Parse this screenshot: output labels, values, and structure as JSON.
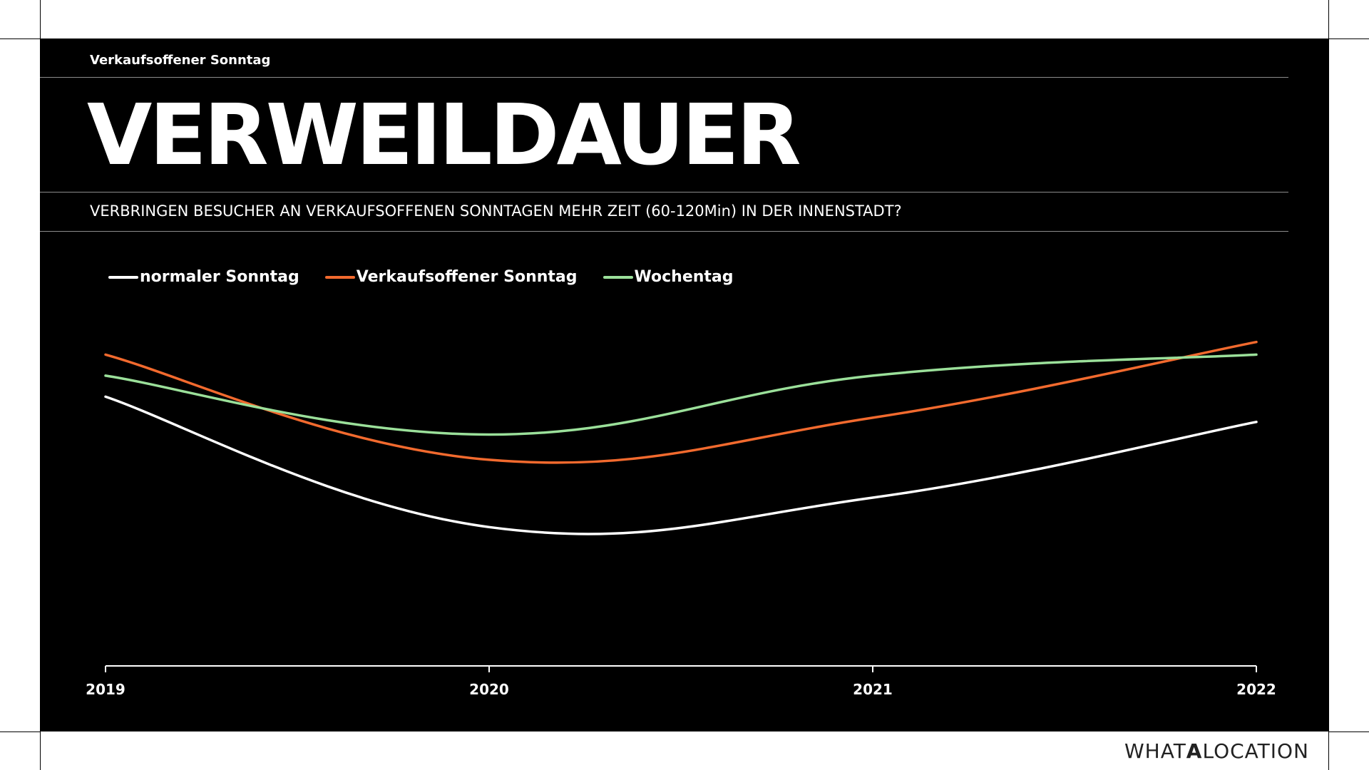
{
  "header": {
    "eyebrow": "Verkaufsoffener Sonntag",
    "title": "VERWEILDAUER",
    "question": "VERBRINGEN BESUCHER AN VERKAUFSOFFENEN SONNTAGEN MEHR ZEIT (60-120Min) IN DER INNENSTADT?"
  },
  "brand": {
    "logo_pre": "WHAT",
    "logo_mid": "A",
    "logo_post": "LOCATION"
  },
  "colors": {
    "background": "#000000",
    "text": "#ffffff"
  },
  "chart_data": {
    "type": "line",
    "title": "",
    "xlabel": "",
    "ylabel": "",
    "categories": [
      "2019",
      "2020",
      "2021",
      "2022"
    ],
    "ylim": [
      0,
      100
    ],
    "grid": false,
    "legend": "top-left",
    "series": [
      {
        "name": "normaler Sonntag",
        "color": "#ffffff",
        "values": [
          64,
          33,
          40,
          58
        ]
      },
      {
        "name": "Verkaufsoffener Sonntag",
        "color": "#f26a2e",
        "values": [
          74,
          49,
          59,
          77
        ]
      },
      {
        "name": "Wochentag",
        "color": "#9be09a",
        "values": [
          69,
          55,
          69,
          74
        ]
      }
    ]
  }
}
